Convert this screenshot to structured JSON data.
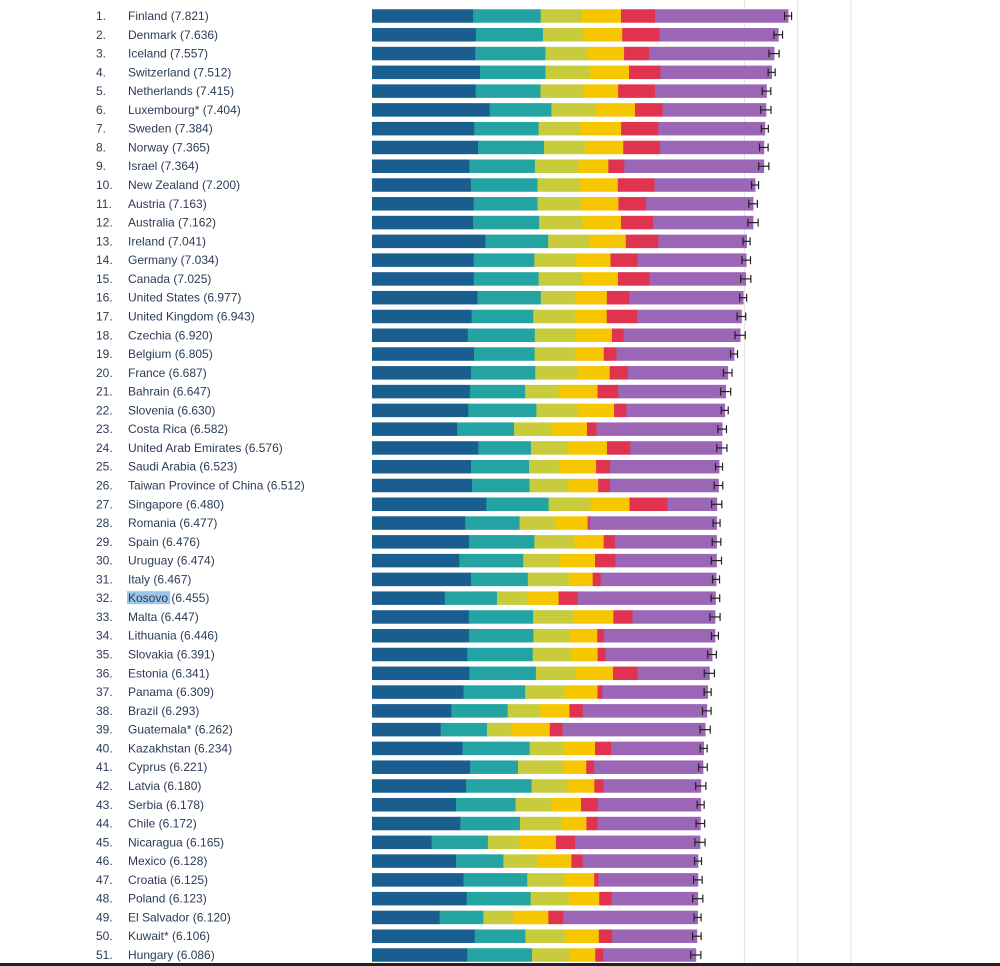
{
  "chart_data": {
    "type": "bar",
    "orientation": "horizontal",
    "stacked": true,
    "xlim": [
      0,
      7.9
    ],
    "grid": true,
    "highlighted_country": "Kosovo",
    "segment_colors": [
      "#1a5d8f",
      "#24a3a3",
      "#c8cc3c",
      "#f6c700",
      "#e0334f",
      "#9b66b5"
    ],
    "rows": [
      {
        "rank": "1.",
        "label": "Finland (7.821)",
        "score": 7.821,
        "segments": [
          1.9,
          1.27,
          0.78,
          0.73,
          0.64,
          2.5
        ]
      },
      {
        "rank": "2.",
        "label": "Denmark (7.636)",
        "score": 7.636,
        "segments": [
          1.95,
          1.26,
          0.77,
          0.72,
          0.7,
          2.23
        ]
      },
      {
        "rank": "3.",
        "label": "Iceland (7.557)",
        "score": 7.557,
        "segments": [
          1.94,
          1.32,
          0.78,
          0.7,
          0.47,
          2.35
        ]
      },
      {
        "rank": "4.",
        "label": "Switzerland (7.512)",
        "score": 7.512,
        "segments": [
          2.03,
          1.23,
          0.84,
          0.73,
          0.59,
          2.09
        ]
      },
      {
        "rank": "5.",
        "label": "Netherlands (7.415)",
        "score": 7.415,
        "segments": [
          1.95,
          1.22,
          0.8,
          0.66,
          0.69,
          2.1
        ]
      },
      {
        "rank": "6.",
        "label": "Luxembourg* (7.404)",
        "score": 7.404,
        "segments": [
          2.21,
          1.16,
          0.83,
          0.74,
          0.52,
          1.94
        ]
      },
      {
        "rank": "7.",
        "label": "Sweden (7.384)",
        "score": 7.384,
        "segments": [
          1.92,
          1.21,
          0.78,
          0.77,
          0.7,
          2.0
        ]
      },
      {
        "rank": "8.",
        "label": "Norway (7.365)",
        "score": 7.365,
        "segments": [
          1.99,
          1.24,
          0.77,
          0.72,
          0.69,
          1.95
        ]
      },
      {
        "rank": "9.",
        "label": "Israel (7.364)",
        "score": 7.364,
        "segments": [
          1.83,
          1.23,
          0.82,
          0.56,
          0.3,
          2.62
        ]
      },
      {
        "rank": "10.",
        "label": "New Zealand (7.200)",
        "score": 7.2,
        "segments": [
          1.86,
          1.25,
          0.79,
          0.72,
          0.69,
          1.89
        ]
      },
      {
        "rank": "11.",
        "label": "Austria (7.163)",
        "score": 7.163,
        "segments": [
          1.91,
          1.2,
          0.81,
          0.71,
          0.52,
          2.01
        ]
      },
      {
        "rank": "12.",
        "label": "Australia (7.162)",
        "score": 7.162,
        "segments": [
          1.9,
          1.24,
          0.82,
          0.72,
          0.6,
          1.88
        ]
      },
      {
        "rank": "13.",
        "label": "Ireland (7.041)",
        "score": 7.041,
        "segments": [
          2.13,
          1.18,
          0.79,
          0.67,
          0.61,
          1.66
        ]
      },
      {
        "rank": "14.",
        "label": "Germany (7.034)",
        "score": 7.034,
        "segments": [
          1.91,
          1.14,
          0.79,
          0.64,
          0.51,
          2.04
        ]
      },
      {
        "rank": "15.",
        "label": "Canada (7.025)",
        "score": 7.025,
        "segments": [
          1.91,
          1.22,
          0.82,
          0.67,
          0.59,
          1.81
        ]
      },
      {
        "rank": "16.",
        "label": "United States (6.977)",
        "score": 6.977,
        "segments": [
          1.98,
          1.19,
          0.65,
          0.59,
          0.42,
          2.14
        ]
      },
      {
        "rank": "17.",
        "label": "United Kingdom (6.943)",
        "score": 6.943,
        "segments": [
          1.87,
          1.16,
          0.78,
          0.6,
          0.57,
          1.96
        ]
      },
      {
        "rank": "18.",
        "label": "Czechia (6.920)",
        "score": 6.92,
        "segments": [
          1.8,
          1.26,
          0.78,
          0.67,
          0.22,
          2.19
        ]
      },
      {
        "rank": "19.",
        "label": "Belgium (6.805)",
        "score": 6.805,
        "segments": [
          1.92,
          1.14,
          0.76,
          0.54,
          0.24,
          2.21
        ]
      },
      {
        "rank": "20.",
        "label": "France (6.687)",
        "score": 6.687,
        "segments": [
          1.86,
          1.21,
          0.8,
          0.6,
          0.34,
          1.88
        ]
      },
      {
        "rank": "21.",
        "label": "Bahrain (6.647)",
        "score": 6.647,
        "segments": [
          1.84,
          1.04,
          0.63,
          0.73,
          0.39,
          2.02
        ]
      },
      {
        "rank": "22.",
        "label": "Slovenia (6.630)",
        "score": 6.63,
        "segments": [
          1.81,
          1.28,
          0.77,
          0.69,
          0.23,
          1.85
        ]
      },
      {
        "rank": "23.",
        "label": "Costa Rica (6.582)",
        "score": 6.582,
        "segments": [
          1.6,
          1.07,
          0.7,
          0.67,
          0.18,
          2.36
        ]
      },
      {
        "rank": "24.",
        "label": "United Arab Emirates (6.576)",
        "score": 6.576,
        "segments": [
          2.0,
          0.99,
          0.68,
          0.75,
          0.44,
          1.72
        ]
      },
      {
        "rank": "25.",
        "label": "Saudi Arabia (6.523)",
        "score": 6.523,
        "segments": [
          1.86,
          1.09,
          0.57,
          0.69,
          0.26,
          2.05
        ]
      },
      {
        "rank": "26.",
        "label": "Taiwan Province of China (6.512)",
        "score": 6.512,
        "segments": [
          1.88,
          1.08,
          0.73,
          0.56,
          0.22,
          2.04
        ]
      },
      {
        "rank": "27.",
        "label": "Singapore (6.480)",
        "score": 6.48,
        "segments": [
          2.15,
          1.17,
          0.79,
          0.73,
          0.71,
          0.93
        ]
      },
      {
        "rank": "28.",
        "label": "Romania (6.477)",
        "score": 6.477,
        "segments": [
          1.75,
          1.02,
          0.67,
          0.61,
          0.04,
          2.38
        ]
      },
      {
        "rank": "29.",
        "label": "Spain (6.476)",
        "score": 6.476,
        "segments": [
          1.82,
          1.23,
          0.75,
          0.55,
          0.21,
          1.91
        ]
      },
      {
        "rank": "30.",
        "label": "Uruguay (6.474)",
        "score": 6.474,
        "segments": [
          1.64,
          1.2,
          0.69,
          0.66,
          0.38,
          1.9
        ]
      },
      {
        "rank": "31.",
        "label": "Italy (6.467)",
        "score": 6.467,
        "segments": [
          1.86,
          1.07,
          0.77,
          0.45,
          0.15,
          2.17
        ]
      },
      {
        "rank": "32.",
        "label": "Kosovo (6.455)",
        "score": 6.455,
        "segments": [
          1.37,
          0.98,
          0.57,
          0.59,
          0.36,
          2.59
        ]
      },
      {
        "rank": "33.",
        "label": "Malta (6.447)",
        "score": 6.447,
        "segments": [
          1.82,
          1.21,
          0.75,
          0.76,
          0.36,
          1.55
        ]
      },
      {
        "rank": "34.",
        "label": "Lithuania (6.446)",
        "score": 6.446,
        "segments": [
          1.82,
          1.21,
          0.69,
          0.51,
          0.13,
          2.08
        ]
      },
      {
        "rank": "35.",
        "label": "Slovakia (6.391)",
        "score": 6.391,
        "segments": [
          1.79,
          1.23,
          0.72,
          0.5,
          0.15,
          2.0
        ]
      },
      {
        "rank": "36.",
        "label": "Estonia (6.341)",
        "score": 6.341,
        "segments": [
          1.83,
          1.25,
          0.76,
          0.69,
          0.46,
          1.35
        ]
      },
      {
        "rank": "37.",
        "label": "Panama (6.309)",
        "score": 6.309,
        "segments": [
          1.72,
          1.16,
          0.74,
          0.62,
          0.09,
          1.98
        ]
      },
      {
        "rank": "38.",
        "label": "Brazil (6.293)",
        "score": 6.293,
        "segments": [
          1.49,
          1.06,
          0.61,
          0.55,
          0.25,
          2.33
        ]
      },
      {
        "rank": "39.",
        "label": "Guatemala* (6.262)",
        "score": 6.262,
        "segments": [
          1.29,
          0.87,
          0.47,
          0.71,
          0.24,
          2.68
        ]
      },
      {
        "rank": "40.",
        "label": "Kazakhstan (6.234)",
        "score": 6.234,
        "segments": [
          1.7,
          1.26,
          0.63,
          0.6,
          0.3,
          1.74
        ]
      },
      {
        "rank": "41.",
        "label": "Cyprus (6.221)",
        "score": 6.221,
        "segments": [
          1.84,
          0.9,
          0.84,
          0.44,
          0.15,
          2.04
        ]
      },
      {
        "rank": "42.",
        "label": "Latvia (6.180)",
        "score": 6.18,
        "segments": [
          1.77,
          1.23,
          0.67,
          0.51,
          0.17,
          1.83
        ]
      },
      {
        "rank": "43.",
        "label": "Serbia (6.178)",
        "score": 6.178,
        "segments": [
          1.58,
          1.12,
          0.67,
          0.56,
          0.32,
          1.93
        ]
      },
      {
        "rank": "44.",
        "label": "Chile (6.172)",
        "score": 6.172,
        "segments": [
          1.66,
          1.12,
          0.78,
          0.47,
          0.21,
          1.93
        ]
      },
      {
        "rank": "45.",
        "label": "Nicaragua (6.165)",
        "score": 6.165,
        "segments": [
          1.12,
          1.06,
          0.59,
          0.69,
          0.36,
          2.35
        ]
      },
      {
        "rank": "46.",
        "label": "Mexico (6.128)",
        "score": 6.128,
        "segments": [
          1.58,
          0.89,
          0.64,
          0.64,
          0.21,
          2.17
        ]
      },
      {
        "rank": "47.",
        "label": "Croatia (6.125)",
        "score": 6.125,
        "segments": [
          1.72,
          1.2,
          0.7,
          0.56,
          0.08,
          1.87
        ]
      },
      {
        "rank": "48.",
        "label": "Poland (6.123)",
        "score": 6.123,
        "segments": [
          1.78,
          1.2,
          0.72,
          0.57,
          0.23,
          1.62
        ]
      },
      {
        "rank": "49.",
        "label": "El Salvador (6.120)",
        "score": 6.12,
        "segments": [
          1.27,
          0.82,
          0.57,
          0.65,
          0.28,
          2.52
        ]
      },
      {
        "rank": "50.",
        "label": "Kuwait* (6.106)",
        "score": 6.106,
        "segments": [
          1.93,
          0.95,
          0.74,
          0.64,
          0.25,
          1.59
        ]
      },
      {
        "rank": "51.",
        "label": "Hungary (6.086)",
        "score": 6.086,
        "segments": [
          1.79,
          1.22,
          0.72,
          0.47,
          0.15,
          1.74
        ]
      }
    ]
  }
}
